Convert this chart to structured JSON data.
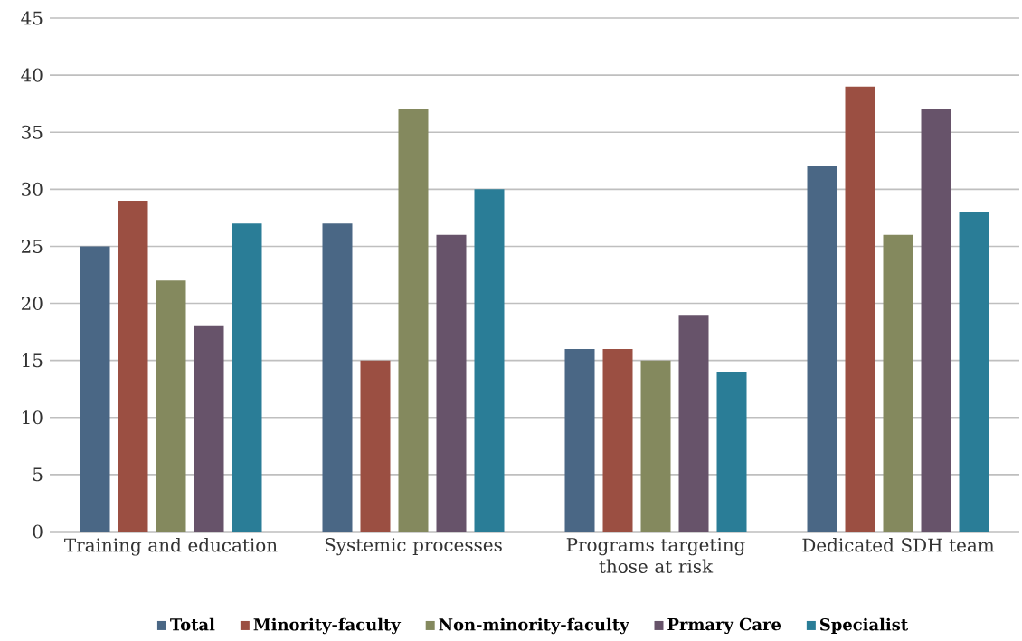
{
  "chart_data": {
    "type": "bar",
    "categories": [
      "Training and education",
      "Systemic processes",
      "Programs targeting those at risk",
      "Dedicated SDH team"
    ],
    "series": [
      {
        "name": "Total",
        "color": "#4a6785",
        "values": [
          25,
          27,
          16,
          32
        ]
      },
      {
        "name": "Minority-faculty",
        "color": "#9b4f42",
        "values": [
          29,
          15,
          16,
          39
        ]
      },
      {
        "name": "Non-minority-faculty",
        "color": "#84895e",
        "values": [
          22,
          37,
          15,
          26
        ]
      },
      {
        "name": "Prmary Care",
        "color": "#67536a",
        "values": [
          18,
          26,
          19,
          37
        ]
      },
      {
        "name": "Specialist",
        "color": "#2a7d97",
        "values": [
          27,
          30,
          14,
          28
        ]
      }
    ],
    "ylim": [
      0,
      45
    ],
    "yticks": [
      0,
      5,
      10,
      15,
      20,
      25,
      30,
      35,
      40,
      45
    ],
    "grid": "y",
    "legend": "bottom"
  }
}
